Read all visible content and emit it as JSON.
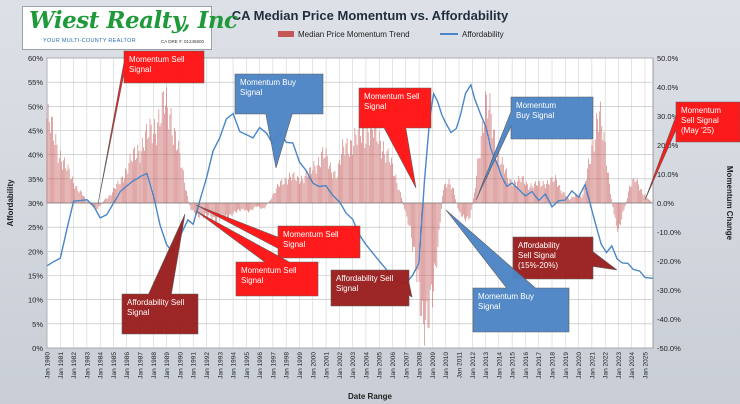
{
  "logo": {
    "name": "Wiest Realty, Inc",
    "tagline": "YOUR MULTI-COUNTY REALTOR",
    "license": "CA DRE #: 01245600"
  },
  "chart_data": {
    "type": "bar+line",
    "title": "CA Median Price Momentum vs. Affordability",
    "xlabel": "Date Range",
    "ylabel_left": "Affordability",
    "ylabel_right": "Momentum Change",
    "legend": [
      "Median Price Momentum Trend",
      "Affordability"
    ],
    "legend_position": "top",
    "grid": true,
    "ylim_left": [
      0,
      60
    ],
    "ylim_right": [
      -50,
      50
    ],
    "yticks_left": [
      "0%",
      "5%",
      "10%",
      "15%",
      "20%",
      "25%",
      "30%",
      "35%",
      "40%",
      "45%",
      "50%",
      "55%",
      "60%"
    ],
    "yticks_right": [
      "-50.0%",
      "-40.0%",
      "-30.0%",
      "-20.0%",
      "-10.0%",
      "0.0%",
      "10.0%",
      "20.0%",
      "30.0%",
      "40.0%",
      "50.0%"
    ],
    "x_ticks": [
      "Jan 1980",
      "Jan 1981",
      "Jan 1982",
      "Jan 1983",
      "Jan 1984",
      "Jan 1985",
      "Jan 1986",
      "Jan 1987",
      "Jan 1988",
      "Jan 1989",
      "Jan 1990",
      "Jan 1991",
      "Jan 1992",
      "Jan 1993",
      "Jan 1994",
      "Jan 1995",
      "Jan 1996",
      "Jan 1997",
      "Jan 1998",
      "Jan 1999",
      "Jan 2000",
      "Jan 2001",
      "Jan 2002",
      "Jan 2003",
      "Jan 2004",
      "Jan 2005",
      "Jan 2006",
      "Jan 2007",
      "Jan 2008",
      "Jan 2009",
      "Jan 2010",
      "Jan 2011",
      "Jan 2012",
      "Jan 2013",
      "Jan 2014",
      "Jan 2015",
      "Jan 2016",
      "Jan 2017",
      "Jan 2018",
      "Jan 2019",
      "Jan 2020",
      "Jan 2021",
      "Jan 2022",
      "Jan 2023",
      "Jan 2024",
      "Jan 2025"
    ],
    "x_range": [
      1980.0,
      2025.6
    ],
    "series": [
      {
        "name": "Median Price Momentum Trend",
        "axis": "right",
        "color": "#c45757",
        "points": [
          [
            1980.0,
            29
          ],
          [
            1980.6,
            22
          ],
          [
            1981.2,
            14
          ],
          [
            1981.8,
            9
          ],
          [
            1982.3,
            5
          ],
          [
            1982.8,
            2
          ],
          [
            1983.3,
            -1
          ],
          [
            1983.8,
            -2
          ],
          [
            1984.3,
            1
          ],
          [
            1984.8,
            3
          ],
          [
            1985.3,
            6
          ],
          [
            1985.8,
            10
          ],
          [
            1986.3,
            14
          ],
          [
            1986.8,
            18
          ],
          [
            1987.3,
            21
          ],
          [
            1987.8,
            24
          ],
          [
            1988.3,
            28
          ],
          [
            1988.8,
            33
          ],
          [
            1989.3,
            31
          ],
          [
            1989.8,
            20
          ],
          [
            1990.3,
            8
          ],
          [
            1990.8,
            -2
          ],
          [
            1991.3,
            -4
          ],
          [
            1991.8,
            -5
          ],
          [
            1992.3,
            -4
          ],
          [
            1992.8,
            -6
          ],
          [
            1993.3,
            -5
          ],
          [
            1993.8,
            -4
          ],
          [
            1994.3,
            -3
          ],
          [
            1994.8,
            -2
          ],
          [
            1995.3,
            -3
          ],
          [
            1995.8,
            -1
          ],
          [
            1996.3,
            -2
          ],
          [
            1996.8,
            1
          ],
          [
            1997.3,
            5
          ],
          [
            1997.8,
            8
          ],
          [
            1998.3,
            9
          ],
          [
            1998.8,
            8
          ],
          [
            1999.3,
            9
          ],
          [
            1999.8,
            10
          ],
          [
            2000.3,
            14
          ],
          [
            2000.8,
            17
          ],
          [
            2001.3,
            12
          ],
          [
            2001.8,
            10
          ],
          [
            2002.3,
            18
          ],
          [
            2002.8,
            21
          ],
          [
            2003.3,
            22
          ],
          [
            2003.8,
            24
          ],
          [
            2004.3,
            26
          ],
          [
            2004.8,
            23
          ],
          [
            2005.3,
            20
          ],
          [
            2005.8,
            14
          ],
          [
            2006.3,
            8
          ],
          [
            2006.8,
            0
          ],
          [
            2007.3,
            -8
          ],
          [
            2007.8,
            -25
          ],
          [
            2008.3,
            -38
          ],
          [
            2008.7,
            -41
          ],
          [
            2009.0,
            -34
          ],
          [
            2009.4,
            -15
          ],
          [
            2009.8,
            5
          ],
          [
            2010.2,
            8
          ],
          [
            2010.6,
            4
          ],
          [
            2011.0,
            -3
          ],
          [
            2011.4,
            -6
          ],
          [
            2011.8,
            -5
          ],
          [
            2012.2,
            4
          ],
          [
            2012.6,
            22
          ],
          [
            2013.0,
            32
          ],
          [
            2013.4,
            30
          ],
          [
            2013.8,
            20
          ],
          [
            2014.3,
            12
          ],
          [
            2014.8,
            8
          ],
          [
            2015.3,
            7
          ],
          [
            2015.8,
            8
          ],
          [
            2016.3,
            6
          ],
          [
            2016.8,
            6
          ],
          [
            2017.3,
            7
          ],
          [
            2017.8,
            7
          ],
          [
            2018.3,
            8
          ],
          [
            2018.8,
            4
          ],
          [
            2019.3,
            1
          ],
          [
            2019.8,
            3
          ],
          [
            2020.3,
            2
          ],
          [
            2020.8,
            14
          ],
          [
            2021.3,
            27
          ],
          [
            2021.6,
            29
          ],
          [
            2021.9,
            22
          ],
          [
            2022.3,
            8
          ],
          [
            2022.7,
            -5
          ],
          [
            2023.0,
            -9
          ],
          [
            2023.4,
            -3
          ],
          [
            2023.8,
            5
          ],
          [
            2024.3,
            8
          ],
          [
            2024.8,
            4
          ],
          [
            2025.3,
            1
          ],
          [
            2025.6,
            0
          ]
        ]
      },
      {
        "name": "Affordability",
        "axis": "left",
        "color": "#4a86c8",
        "points": [
          [
            1980.0,
            17
          ],
          [
            1980.5,
            17.5
          ],
          [
            1981.0,
            18
          ],
          [
            1981.5,
            24
          ],
          [
            1982.0,
            30
          ],
          [
            1982.6,
            30.5
          ],
          [
            1983.0,
            31
          ],
          [
            1983.5,
            30
          ],
          [
            1984.0,
            27.5
          ],
          [
            1984.5,
            28
          ],
          [
            1985.0,
            30
          ],
          [
            1985.5,
            32
          ],
          [
            1986.0,
            33
          ],
          [
            1986.5,
            34
          ],
          [
            1987.0,
            35
          ],
          [
            1987.5,
            36
          ],
          [
            1988.0,
            32
          ],
          [
            1988.5,
            26
          ],
          [
            1989.0,
            22
          ],
          [
            1989.4,
            20.5
          ],
          [
            1989.8,
            22
          ],
          [
            1990.2,
            24
          ],
          [
            1990.6,
            26
          ],
          [
            1991.0,
            25
          ],
          [
            1991.5,
            30
          ],
          [
            1992.0,
            35
          ],
          [
            1992.5,
            41
          ],
          [
            1993.0,
            44
          ],
          [
            1993.5,
            48
          ],
          [
            1994.0,
            49
          ],
          [
            1994.5,
            45
          ],
          [
            1995.0,
            44
          ],
          [
            1995.5,
            43
          ],
          [
            1996.0,
            45
          ],
          [
            1996.5,
            44
          ],
          [
            1997.0,
            42
          ],
          [
            1997.5,
            45
          ],
          [
            1998.0,
            43
          ],
          [
            1998.5,
            43
          ],
          [
            1999.0,
            39
          ],
          [
            1999.5,
            37
          ],
          [
            2000.0,
            34
          ],
          [
            2000.5,
            33
          ],
          [
            2001.0,
            33
          ],
          [
            2001.5,
            31
          ],
          [
            2002.0,
            30
          ],
          [
            2002.5,
            28
          ],
          [
            2003.0,
            27
          ],
          [
            2003.5,
            24
          ],
          [
            2004.0,
            22
          ],
          [
            2004.5,
            20
          ],
          [
            2005.0,
            18
          ],
          [
            2005.5,
            16
          ],
          [
            2006.0,
            14
          ],
          [
            2006.5,
            13
          ],
          [
            2007.0,
            13
          ],
          [
            2007.5,
            15
          ],
          [
            2008.0,
            18
          ],
          [
            2008.4,
            35
          ],
          [
            2008.8,
            48
          ],
          [
            2009.1,
            53
          ],
          [
            2009.4,
            51
          ],
          [
            2009.7,
            48
          ],
          [
            2010.0,
            46
          ],
          [
            2010.4,
            44
          ],
          [
            2010.8,
            45
          ],
          [
            2011.1,
            48
          ],
          [
            2011.5,
            53
          ],
          [
            2011.9,
            55
          ],
          [
            2012.2,
            52
          ],
          [
            2012.6,
            49
          ],
          [
            2013.0,
            46
          ],
          [
            2013.4,
            41
          ],
          [
            2013.8,
            38
          ],
          [
            2014.2,
            35
          ],
          [
            2014.6,
            33
          ],
          [
            2015.0,
            34
          ],
          [
            2015.5,
            33
          ],
          [
            2016.0,
            32
          ],
          [
            2016.5,
            33
          ],
          [
            2017.0,
            31
          ],
          [
            2017.5,
            32
          ],
          [
            2018.0,
            29
          ],
          [
            2018.5,
            30
          ],
          [
            2019.0,
            30
          ],
          [
            2019.5,
            32
          ],
          [
            2020.0,
            31
          ],
          [
            2020.5,
            34
          ],
          [
            2020.9,
            30
          ],
          [
            2021.3,
            26
          ],
          [
            2021.7,
            22
          ],
          [
            2022.1,
            20
          ],
          [
            2022.5,
            21
          ],
          [
            2022.9,
            18
          ],
          [
            2023.3,
            17
          ],
          [
            2023.7,
            17
          ],
          [
            2024.1,
            16
          ],
          [
            2024.6,
            16
          ],
          [
            2025.0,
            15
          ],
          [
            2025.6,
            15
          ]
        ]
      }
    ],
    "annotations": [
      {
        "text": [
          "Momentum Sell",
          "Signal"
        ],
        "color": "#ff1414",
        "text_color": "#ffffff"
      },
      {
        "text": [
          "Momentum Buy",
          "Signal"
        ],
        "color": "#4f86c6",
        "text_color": "#ffffff"
      },
      {
        "text": [
          "Momentum Sell",
          "Signal"
        ],
        "color": "#ff1414",
        "text_color": "#ffffff"
      },
      {
        "text": [
          "Momentum",
          "Buy Signal"
        ],
        "color": "#4f86c6",
        "text_color": "#ffffff"
      },
      {
        "text": [
          "Momentum",
          "Sell Signal",
          "(May '25)"
        ],
        "color": "#ff1414",
        "text_color": "#ffffff"
      },
      {
        "text": [
          "Momentum Sell",
          "Signal"
        ],
        "color": "#ff1414",
        "text_color": "#ffffff"
      },
      {
        "text": [
          "Momentum Sell",
          "Signal"
        ],
        "color": "#ff1414",
        "text_color": "#ffffff"
      },
      {
        "text": [
          "Affordability Sell",
          "Signal"
        ],
        "color": "#9a1f1f",
        "text_color": "#ffffff"
      },
      {
        "text": [
          "Affordability Sell",
          "Signal"
        ],
        "color": "#9a1f1f",
        "text_color": "#ffffff"
      },
      {
        "text": [
          "Affordability",
          "Sell Signal",
          "(15%-20%)"
        ],
        "color": "#9a1f1f",
        "text_color": "#ffffff"
      },
      {
        "text": [
          "Momentum Buy",
          "Signal"
        ],
        "color": "#4f86c6",
        "text_color": "#ffffff"
      }
    ]
  }
}
